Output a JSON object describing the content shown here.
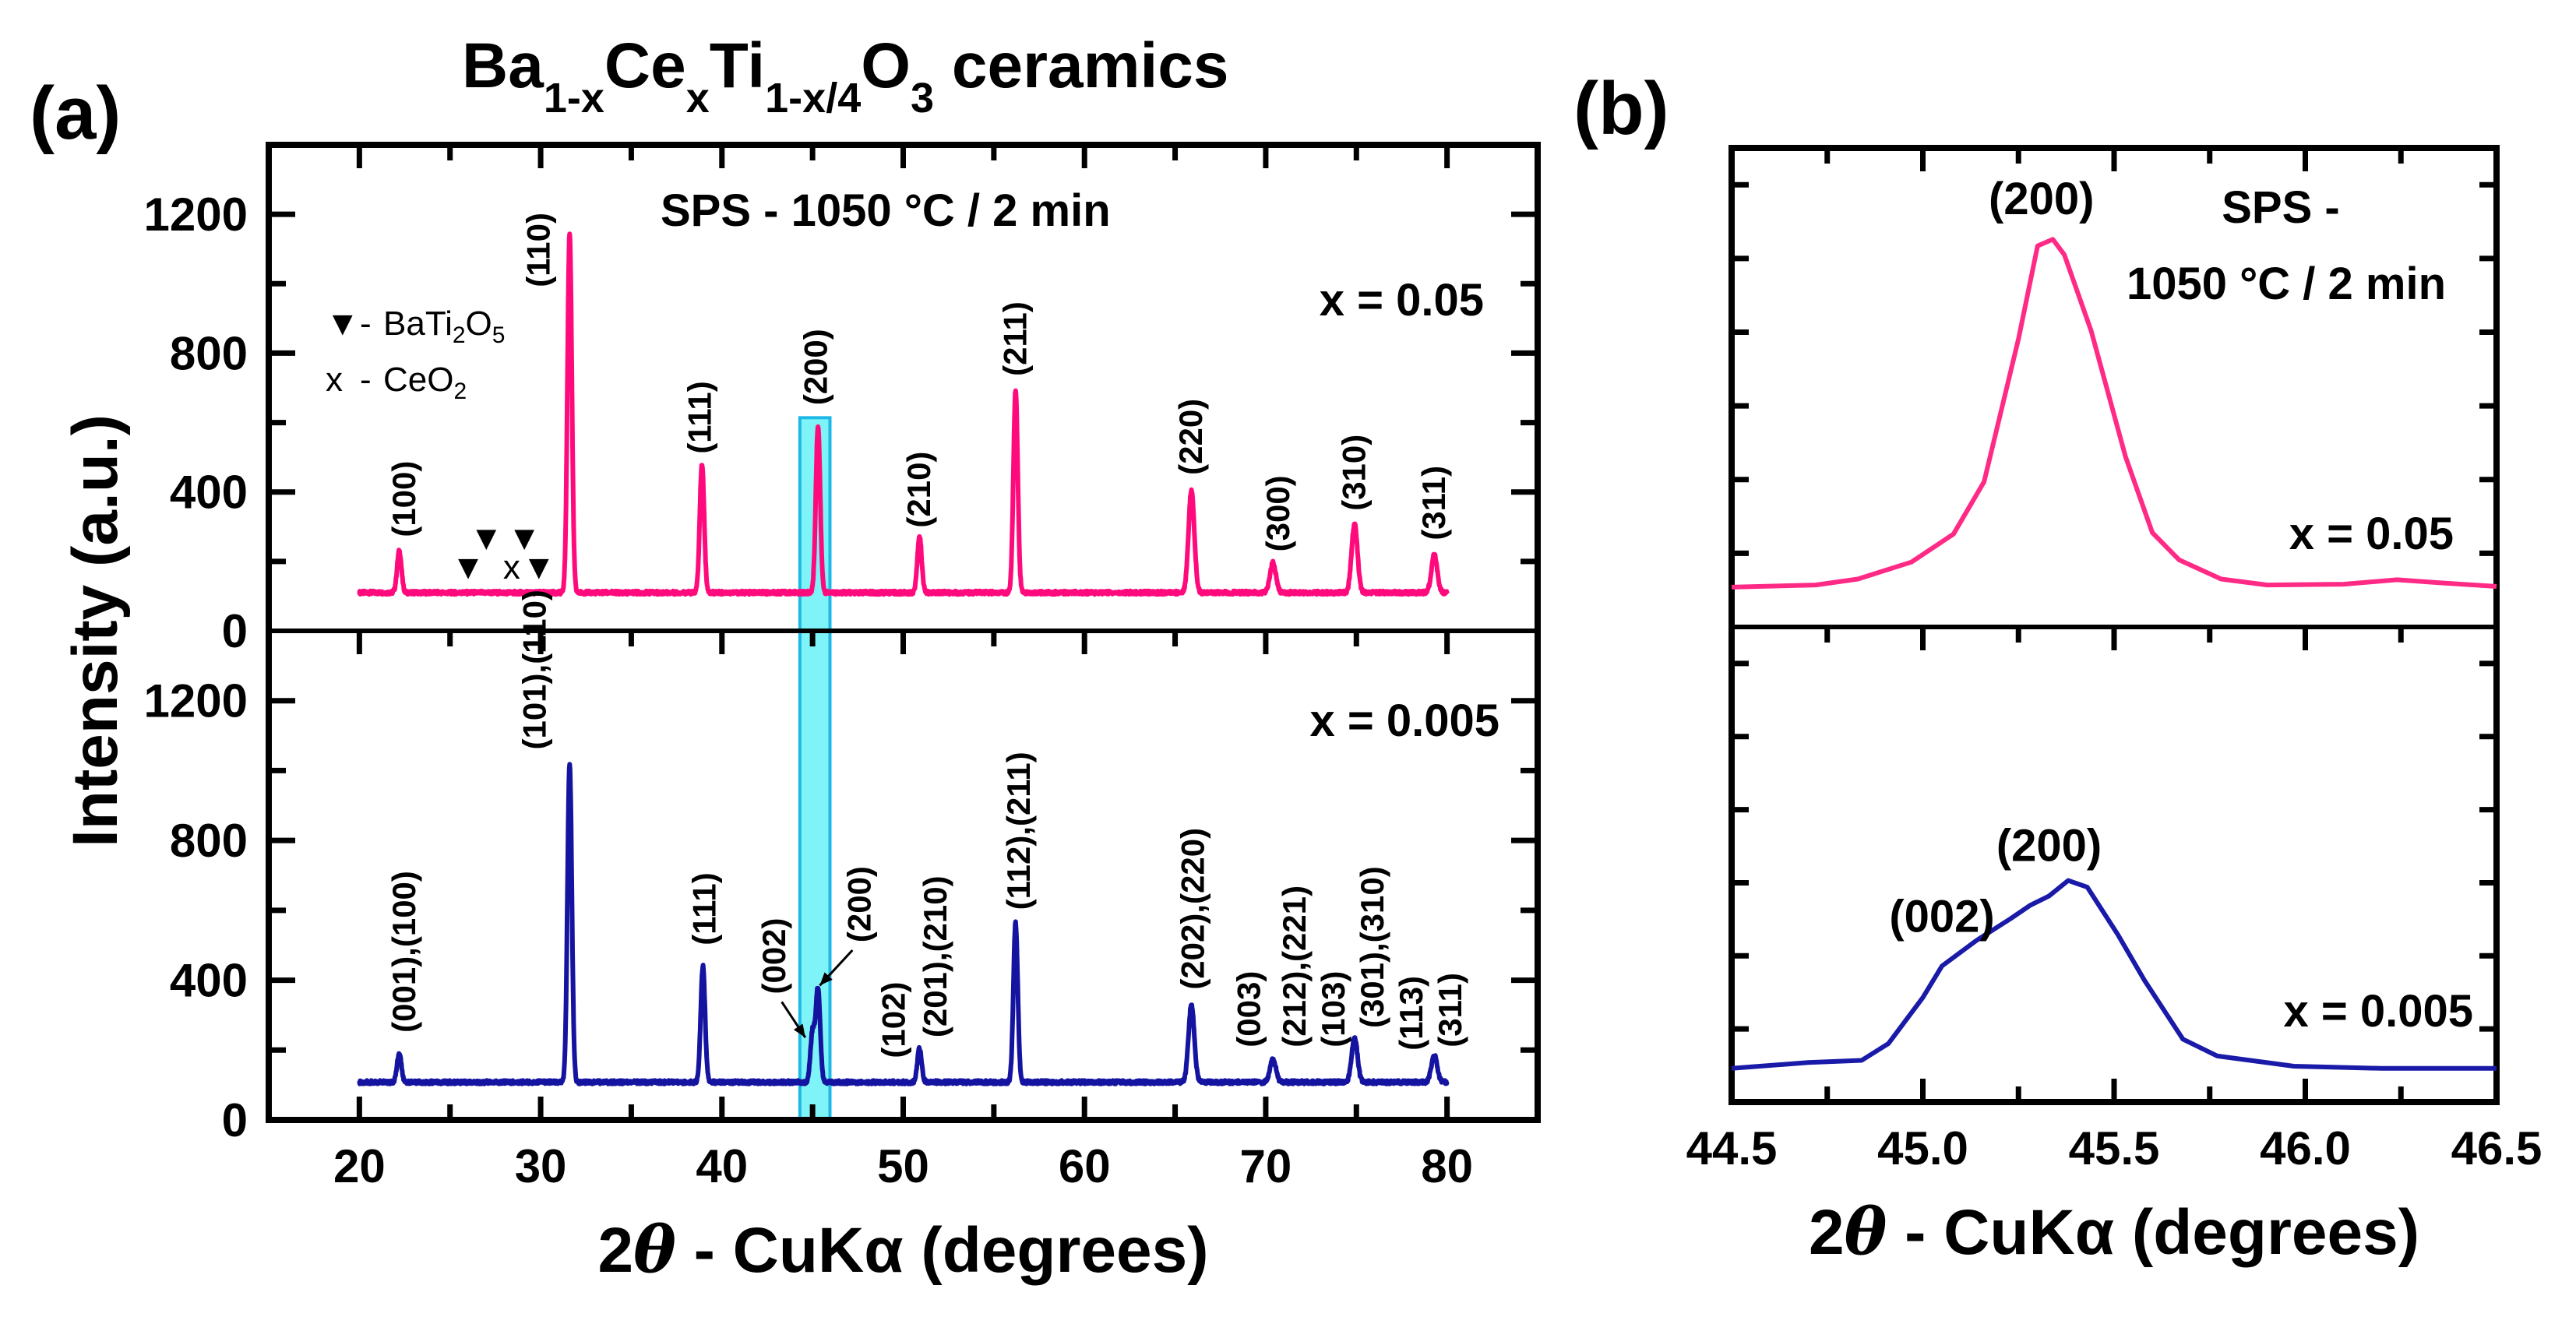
{
  "panel_labels": {
    "a": "(a)",
    "b": "(b)"
  },
  "title": {
    "ba": "Ba",
    "s1": "1-x",
    "ce": "Ce",
    "s2": "x",
    "ti": "Ti",
    "s3": "1-x/4",
    "o": "O",
    "s4": "3",
    "rest": " ceramics"
  },
  "chart_data": [
    {
      "id": "a",
      "type": "line",
      "title": "Ba1-xCexTi1-x/4O3 ceramics",
      "xlabel": {
        "pre": "2",
        "theta": "θ",
        "post": " - CuKα (degrees)"
      },
      "ylabel": "Intensity (a.u.)",
      "xlim": [
        15,
        85
      ],
      "xticks": [
        20,
        30,
        40,
        50,
        60,
        70,
        80
      ],
      "xtick_labels": [
        "20",
        "30",
        "40",
        "50",
        "60",
        "70",
        "80"
      ],
      "ylim": [
        0,
        1400
      ],
      "yticks": [
        0,
        400,
        800,
        1200
      ],
      "ytick_labels": [
        "0",
        "400",
        "800",
        "1200"
      ],
      "highlight": {
        "x_range": [
          44.3,
          45.96
        ],
        "color": "#7ff4f8",
        "border": "#1fb8e6"
      },
      "condition": "SPS - 1050 °C / 2 min",
      "legend": {
        "items": [
          {
            "symbol": "▼",
            "label": "BaTi",
            "sub1": "2",
            "mid": "O",
            "sub2": "5"
          },
          {
            "symbol": "x",
            "label": "CeO",
            "sub1": "2"
          }
        ],
        "dash": "-"
      },
      "series": [
        {
          "name": "x = 0.05",
          "color": "#ff0a7c",
          "baseline": 110,
          "peaks": [
            [
              22.2,
              230
            ],
            [
              31.6,
              1145
            ],
            [
              38.9,
              480
            ],
            [
              45.3,
              590
            ],
            [
              50.9,
              272
            ],
            [
              56.2,
              694
            ],
            [
              65.9,
              404
            ],
            [
              70.4,
              196
            ],
            [
              74.9,
              308
            ],
            [
              79.3,
              219
            ]
          ],
          "impurity_markers": [
            {
              "x": 26.0,
              "symbol": "▼"
            },
            {
              "x": 27.0,
              "symbol": "▼"
            },
            {
              "x": 28.4,
              "symbol": "x"
            },
            {
              "x": 29.1,
              "symbol": "▼"
            },
            {
              "x": 29.9,
              "symbol": "▼"
            }
          ],
          "peak_labels": [
            {
              "text": "(100)",
              "x": 22.4,
              "y": 270
            },
            {
              "text": "(110)",
              "x": 29.8,
              "y": 990
            },
            {
              "text": "(111)",
              "x": 38.7,
              "y": 510
            },
            {
              "text": "(200)",
              "x": 45.1,
              "y": 650
            },
            {
              "text": "(210)",
              "x": 50.8,
              "y": 297
            },
            {
              "text": "(211)",
              "x": 56.1,
              "y": 734
            },
            {
              "text": "(220)",
              "x": 65.8,
              "y": 449
            },
            {
              "text": "(300)",
              "x": 70.6,
              "y": 228
            },
            {
              "text": "(310)",
              "x": 74.8,
              "y": 346
            },
            {
              "text": "(311)",
              "x": 79.2,
              "y": 261
            }
          ]
        },
        {
          "name": "x = 0.005",
          "color": "#1414a0",
          "baseline": 108,
          "peaks": [
            [
              22.2,
              190
            ],
            [
              31.6,
              1020
            ],
            [
              38.95,
              440
            ],
            [
              45.0,
              250
            ],
            [
              45.3,
              375
            ],
            [
              50.9,
              205
            ],
            [
              56.2,
              565
            ],
            [
              65.9,
              330
            ],
            [
              70.4,
              175
            ],
            [
              74.9,
              235
            ],
            [
              79.3,
              185
            ]
          ],
          "peak_labels": [
            {
              "text": "(001),(100)",
              "x": 22.4,
              "y": 250
            },
            {
              "text": "(101),(110)",
              "x": 29.6,
              "y": 1060
            },
            {
              "text": "(111)",
              "x": 38.96,
              "y": 500
            },
            {
              "text": "(002)",
              "x": 42.8,
              "y": 360
            },
            {
              "text": "(200)",
              "x": 47.5,
              "y": 508
            },
            {
              "text": "(102)",
              "x": 49.4,
              "y": 177
            },
            {
              "text": "(201),(210)",
              "x": 51.7,
              "y": 236
            },
            {
              "text": "(112),(211)",
              "x": 56.3,
              "y": 601
            },
            {
              "text": "(202),(220)",
              "x": 65.9,
              "y": 373
            },
            {
              "text": "(003)",
              "x": 69.0,
              "y": 208
            },
            {
              "text": "(212),(221)",
              "x": 71.5,
              "y": 208
            },
            {
              "text": "(103)",
              "x": 73.3,
              "y": 208
            },
            {
              "text": "(301),(310)",
              "x": 75.4,
              "y": 263
            },
            {
              "text": "(113)",
              "x": 77.9,
              "y": 199
            },
            {
              "text": "(311)",
              "x": 80.0,
              "y": 208
            }
          ],
          "arrows": [
            {
              "from": [
                43.3,
                338
              ],
              "to": [
                44.6,
                236
              ]
            },
            {
              "from": [
                47.2,
                486
              ],
              "to": [
                45.4,
                385
              ]
            }
          ]
        }
      ]
    },
    {
      "id": "b",
      "type": "line",
      "xlabel": {
        "pre": "2",
        "theta": "θ",
        "post": " - CuKα (degrees)"
      },
      "xlim": [
        44.5,
        46.5
      ],
      "xticks": [
        44.5,
        45.0,
        45.5,
        46.0,
        46.5
      ],
      "xtick_labels": [
        "44.5",
        "45.0",
        "45.5",
        "46.0",
        "46.5"
      ],
      "ylim": [
        0,
        650
      ],
      "yticks": [
        100,
        200,
        300,
        400,
        500,
        600
      ],
      "condition_line1": "SPS -",
      "condition_line2": "1050 °C / 2 min",
      "series": [
        {
          "name": "x = 0.05",
          "color": "#ff2a85",
          "points": [
            [
              44.5,
              54
            ],
            [
              44.72,
              57
            ],
            [
              44.83,
              65
            ],
            [
              44.97,
              88
            ],
            [
              45.08,
              126
            ],
            [
              45.16,
              197
            ],
            [
              45.25,
              391
            ],
            [
              45.3,
              517
            ],
            [
              45.34,
              526
            ],
            [
              45.37,
              505
            ],
            [
              45.44,
              402
            ],
            [
              45.53,
              231
            ],
            [
              45.6,
              128
            ],
            [
              45.67,
              91
            ],
            [
              45.78,
              65
            ],
            [
              45.9,
              57
            ],
            [
              46.1,
              58
            ],
            [
              46.24,
              64
            ],
            [
              46.35,
              60
            ],
            [
              46.5,
              55
            ]
          ],
          "peak_labels": [
            {
              "text": "(200)",
              "x": 45.31,
              "y": 560
            }
          ]
        },
        {
          "name": "x = 0.005",
          "color": "#1a1aa8",
          "points": [
            [
              44.5,
              46
            ],
            [
              44.7,
              54
            ],
            [
              44.84,
              57
            ],
            [
              44.91,
              80
            ],
            [
              45.0,
              143
            ],
            [
              45.05,
              186
            ],
            [
              45.14,
              221
            ],
            [
              45.23,
              251
            ],
            [
              45.28,
              269
            ],
            [
              45.33,
              282
            ],
            [
              45.38,
              303
            ],
            [
              45.43,
              294
            ],
            [
              45.51,
              229
            ],
            [
              45.58,
              166
            ],
            [
              45.68,
              86
            ],
            [
              45.77,
              63
            ],
            [
              45.97,
              49
            ],
            [
              46.2,
              46
            ],
            [
              46.5,
              46
            ]
          ],
          "peak_labels": [
            {
              "text": "(200)",
              "x": 45.33,
              "y": 330
            },
            {
              "text": "(002)",
              "x": 45.05,
              "y": 233
            }
          ]
        }
      ]
    }
  ]
}
